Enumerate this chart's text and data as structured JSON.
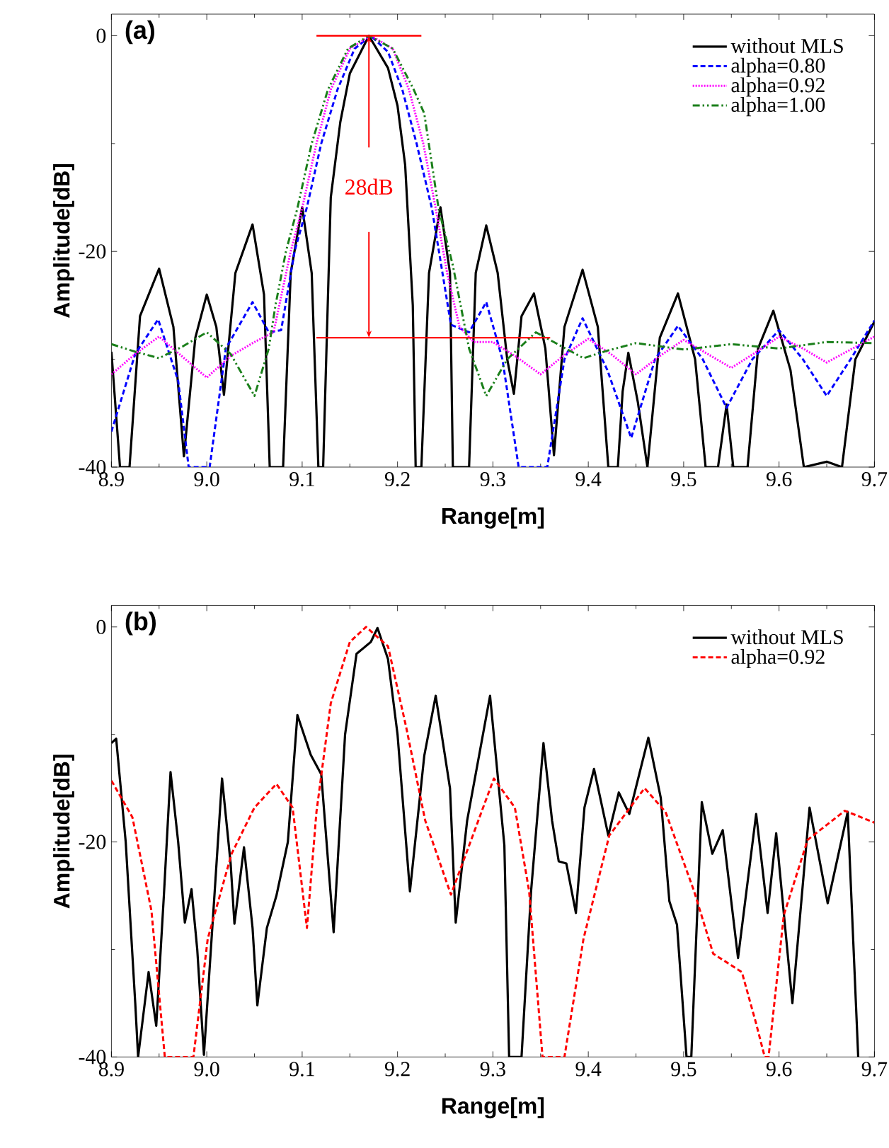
{
  "chart_data": [
    {
      "type": "line",
      "xlabel": "Range[m]",
      "ylabel": "Amplitude[dB]",
      "xlim": [
        8.9,
        9.7
      ],
      "ylim": [
        -40,
        2
      ],
      "xticks": [
        8.9,
        {
          "value": 9.0,
          "label": "9.0"
        },
        9.1,
        9.2,
        9.3,
        9.4,
        9.5,
        9.6,
        9.7
      ],
      "yticks": [
        -40,
        -20,
        0
      ],
      "legend": "top right",
      "annotations": [
        "(a)",
        "28dB"
      ],
      "ref_lines": [
        {
          "axis": "y",
          "value": 0,
          "color": "#ff0000"
        },
        {
          "axis": "y",
          "value": -28,
          "color": "#ff0000"
        }
      ],
      "series": [
        {
          "name": "without MLS",
          "color": "#000000",
          "line_style": "solid",
          "x": [
            8.9,
            8.909,
            8.919,
            8.93,
            8.95,
            8.965,
            8.976,
            8.988,
            9.0,
            9.01,
            9.018,
            9.03,
            9.048,
            9.06,
            9.066,
            9.08,
            9.088,
            9.1,
            9.11,
            9.117,
            9.122,
            9.13,
            9.14,
            9.15,
            9.17,
            9.19,
            9.2,
            9.208,
            9.216,
            9.219,
            9.225,
            9.233,
            9.245,
            9.255,
            9.258,
            9.275,
            9.282,
            9.293,
            9.305,
            9.315,
            9.322,
            9.33,
            9.343,
            9.355,
            9.364,
            9.375,
            9.394,
            9.41,
            9.421,
            9.431,
            9.436,
            9.442,
            9.452,
            9.462,
            9.475,
            9.494,
            9.512,
            9.523,
            9.536,
            9.545,
            9.552,
            9.567,
            9.578,
            9.594,
            9.612,
            9.626,
            9.65,
            9.666,
            9.68,
            9.7
          ],
          "values": [
            -29.3,
            -40,
            -40,
            -26,
            -21.6,
            -27,
            -39,
            -28,
            -24.0,
            -27,
            -33.3,
            -22,
            -17.5,
            -24,
            -40,
            -40,
            -22,
            -15.9,
            -22,
            -40,
            -40,
            -15,
            -8,
            -3.5,
            0,
            -3,
            -6.5,
            -12,
            -25,
            -40,
            -40,
            -22,
            -15.9,
            -22,
            -40,
            -40,
            -22,
            -17.6,
            -22,
            -30,
            -33.2,
            -26,
            -23.9,
            -29,
            -38.9,
            -27,
            -21.7,
            -27,
            -40,
            -40,
            -33,
            -29.4,
            -34,
            -40,
            -28,
            -23.9,
            -30,
            -40,
            -40,
            -34.2,
            -40,
            -40,
            -29,
            -25.5,
            -31,
            -40,
            -39.5,
            -40,
            -30,
            -26.5
          ]
        },
        {
          "name": "alpha=0.80",
          "color": "#0000ff",
          "line_style": "dashed",
          "x": [
            8.9,
            8.925,
            8.949,
            8.97,
            8.981,
            9.003,
            9.02,
            9.048,
            9.065,
            9.078,
            9.092,
            9.105,
            9.12,
            9.137,
            9.155,
            9.172,
            9.19,
            9.205,
            9.22,
            9.236,
            9.256,
            9.275,
            9.293,
            9.31,
            9.327,
            9.357,
            9.375,
            9.394,
            9.42,
            9.445,
            9.47,
            9.494,
            9.52,
            9.545,
            9.572,
            9.6,
            9.625,
            9.65,
            9.675,
            9.7
          ],
          "values": [
            -36.7,
            -29.5,
            -26.3,
            -32,
            -40,
            -40,
            -29,
            -24.7,
            -27.5,
            -27.3,
            -20,
            -15.9,
            -10,
            -5,
            -1.2,
            0,
            -1.5,
            -5,
            -10,
            -16,
            -26.8,
            -27.5,
            -24.7,
            -30,
            -40,
            -40,
            -30,
            -26.2,
            -31,
            -37.3,
            -30,
            -26.9,
            -30,
            -34.5,
            -30,
            -27.3,
            -30,
            -33.4,
            -30,
            -26.4
          ]
        },
        {
          "name": "alpha=0.92",
          "color": "#ff00ff",
          "line_style": "dotted",
          "x": [
            8.9,
            8.925,
            8.95,
            8.975,
            9.0,
            9.025,
            9.05,
            9.07,
            9.088,
            9.1,
            9.115,
            9.13,
            9.15,
            9.172,
            9.195,
            9.212,
            9.227,
            9.24,
            9.252,
            9.265,
            9.28,
            9.3,
            9.325,
            9.35,
            9.375,
            9.4,
            9.425,
            9.45,
            9.475,
            9.5,
            9.525,
            9.55,
            9.575,
            9.6,
            9.625,
            9.65,
            9.675,
            9.7
          ],
          "values": [
            -31.4,
            -29.5,
            -27.9,
            -29.8,
            -31.7,
            -29.7,
            -28.4,
            -27.5,
            -20,
            -16,
            -10,
            -5,
            -1.2,
            0,
            -1.2,
            -5,
            -10,
            -16,
            -22,
            -27,
            -28.4,
            -28.4,
            -29.8,
            -31.4,
            -29.6,
            -28.1,
            -29.6,
            -31.4,
            -29.7,
            -28.2,
            -29.5,
            -30.8,
            -29.4,
            -27.9,
            -29.0,
            -30.3,
            -29.1,
            -27.9
          ]
        },
        {
          "name": "alpha=1.00",
          "color": "#1a7f1a",
          "line_style": "dashdot",
          "x": [
            8.9,
            8.925,
            8.95,
            8.975,
            9.0,
            9.025,
            9.05,
            9.065,
            9.072,
            9.083,
            9.095,
            9.11,
            9.127,
            9.148,
            9.17,
            9.195,
            9.217,
            9.228,
            9.243,
            9.258,
            9.275,
            9.293,
            9.315,
            9.345,
            9.37,
            9.395,
            9.42,
            9.45,
            9.475,
            9.5,
            9.55,
            9.6,
            9.65,
            9.7
          ],
          "values": [
            -28.6,
            -29.3,
            -29.9,
            -28.8,
            -27.5,
            -29.5,
            -33.4,
            -29,
            -25,
            -20,
            -16,
            -10,
            -5,
            -1.2,
            0,
            -1.2,
            -5,
            -7.2,
            -16,
            -21.3,
            -29,
            -33.4,
            -30,
            -27.5,
            -28.7,
            -29.9,
            -29.2,
            -28.5,
            -28.8,
            -29.1,
            -28.6,
            -29.0,
            -28.4,
            -28.5
          ]
        }
      ]
    },
    {
      "type": "line",
      "xlabel": "Range[m]",
      "ylabel": "Amplitude[dB]",
      "xlim": [
        8.9,
        9.7
      ],
      "ylim": [
        -40,
        2
      ],
      "xticks": [
        8.9,
        {
          "value": 9.0,
          "label": "9.0"
        },
        9.1,
        9.2,
        9.3,
        9.4,
        9.5,
        9.6,
        9.7
      ],
      "yticks": [
        -40,
        -20,
        0
      ],
      "legend": "top right",
      "annotations": [
        "(b)"
      ],
      "series": [
        {
          "name": "without MLS",
          "color": "#000000",
          "line_style": "solid",
          "x": [
            8.9,
            8.905,
            8.915,
            8.925,
            8.928,
            8.939,
            8.947,
            8.955,
            8.962,
            8.97,
            8.977,
            8.984,
            8.99,
            8.997,
            9.008,
            9.016,
            9.025,
            9.029,
            9.039,
            9.048,
            9.053,
            9.063,
            9.073,
            9.085,
            9.095,
            9.109,
            9.12,
            9.133,
            9.145,
            9.157,
            9.172,
            9.179,
            9.19,
            9.2,
            9.213,
            9.228,
            9.24,
            9.255,
            9.261,
            9.273,
            9.297,
            9.312,
            9.317,
            9.33,
            9.34,
            9.353,
            9.362,
            9.369,
            9.377,
            9.387,
            9.396,
            9.406,
            9.421,
            9.432,
            9.443,
            9.463,
            9.476,
            9.485,
            9.493,
            9.503,
            9.508,
            9.519,
            9.53,
            9.541,
            9.557,
            9.576,
            9.588,
            9.597,
            9.614,
            9.632,
            9.651,
            9.672,
            9.683
          ],
          "values": [
            -10.8,
            -10.4,
            -20,
            -35,
            -40,
            -32.1,
            -37.1,
            -25,
            -13.5,
            -20,
            -27.5,
            -24.4,
            -30,
            -39.8,
            -25,
            -14.1,
            -22,
            -27.6,
            -20.5,
            -28,
            -35.2,
            -28,
            -25,
            -20,
            -8.2,
            -11.9,
            -13.7,
            -28.4,
            -10,
            -2.5,
            -1.4,
            -0.1,
            -3,
            -10,
            -24.6,
            -12,
            -6.4,
            -15,
            -27.5,
            -18,
            -6.4,
            -20.3,
            -40,
            -40,
            -24.6,
            -10.8,
            -18,
            -21.8,
            -22,
            -26.6,
            -16.8,
            -13.2,
            -19.4,
            -15.4,
            -17.4,
            -10.3,
            -15.9,
            -25.5,
            -27.7,
            -40,
            -40,
            -16.3,
            -21.1,
            -18.9,
            -30.8,
            -17.4,
            -26.6,
            -19.2,
            -35.0,
            -16.8,
            -25.7,
            -17.2,
            -40
          ]
        },
        {
          "name": "alpha=0.92",
          "color": "#ff0000",
          "line_style": "dashed",
          "x": [
            8.9,
            8.922,
            8.942,
            8.956,
            8.986,
            9.001,
            9.026,
            9.05,
            9.073,
            9.09,
            9.105,
            9.115,
            9.13,
            9.15,
            9.167,
            9.19,
            9.209,
            9.229,
            9.256,
            9.281,
            9.301,
            9.323,
            9.338,
            9.352,
            9.375,
            9.395,
            9.422,
            9.459,
            9.481,
            9.511,
            9.531,
            9.561,
            9.576,
            9.585,
            9.589,
            9.605,
            9.63,
            9.669,
            9.7
          ],
          "values": [
            -14.3,
            -17.7,
            -26.4,
            -40,
            -40,
            -29,
            -21.1,
            -16.8,
            -14.6,
            -16.8,
            -28,
            -17.2,
            -7.1,
            -1.4,
            0,
            -1.8,
            -9.3,
            -18,
            -24.9,
            -18.9,
            -14.1,
            -16.8,
            -24.6,
            -40,
            -40,
            -29,
            -19.4,
            -15,
            -17.2,
            -24.6,
            -30.4,
            -32.1,
            -36.9,
            -40,
            -40,
            -26.8,
            -19.8,
            -17.1,
            -18.2
          ]
        }
      ]
    }
  ]
}
